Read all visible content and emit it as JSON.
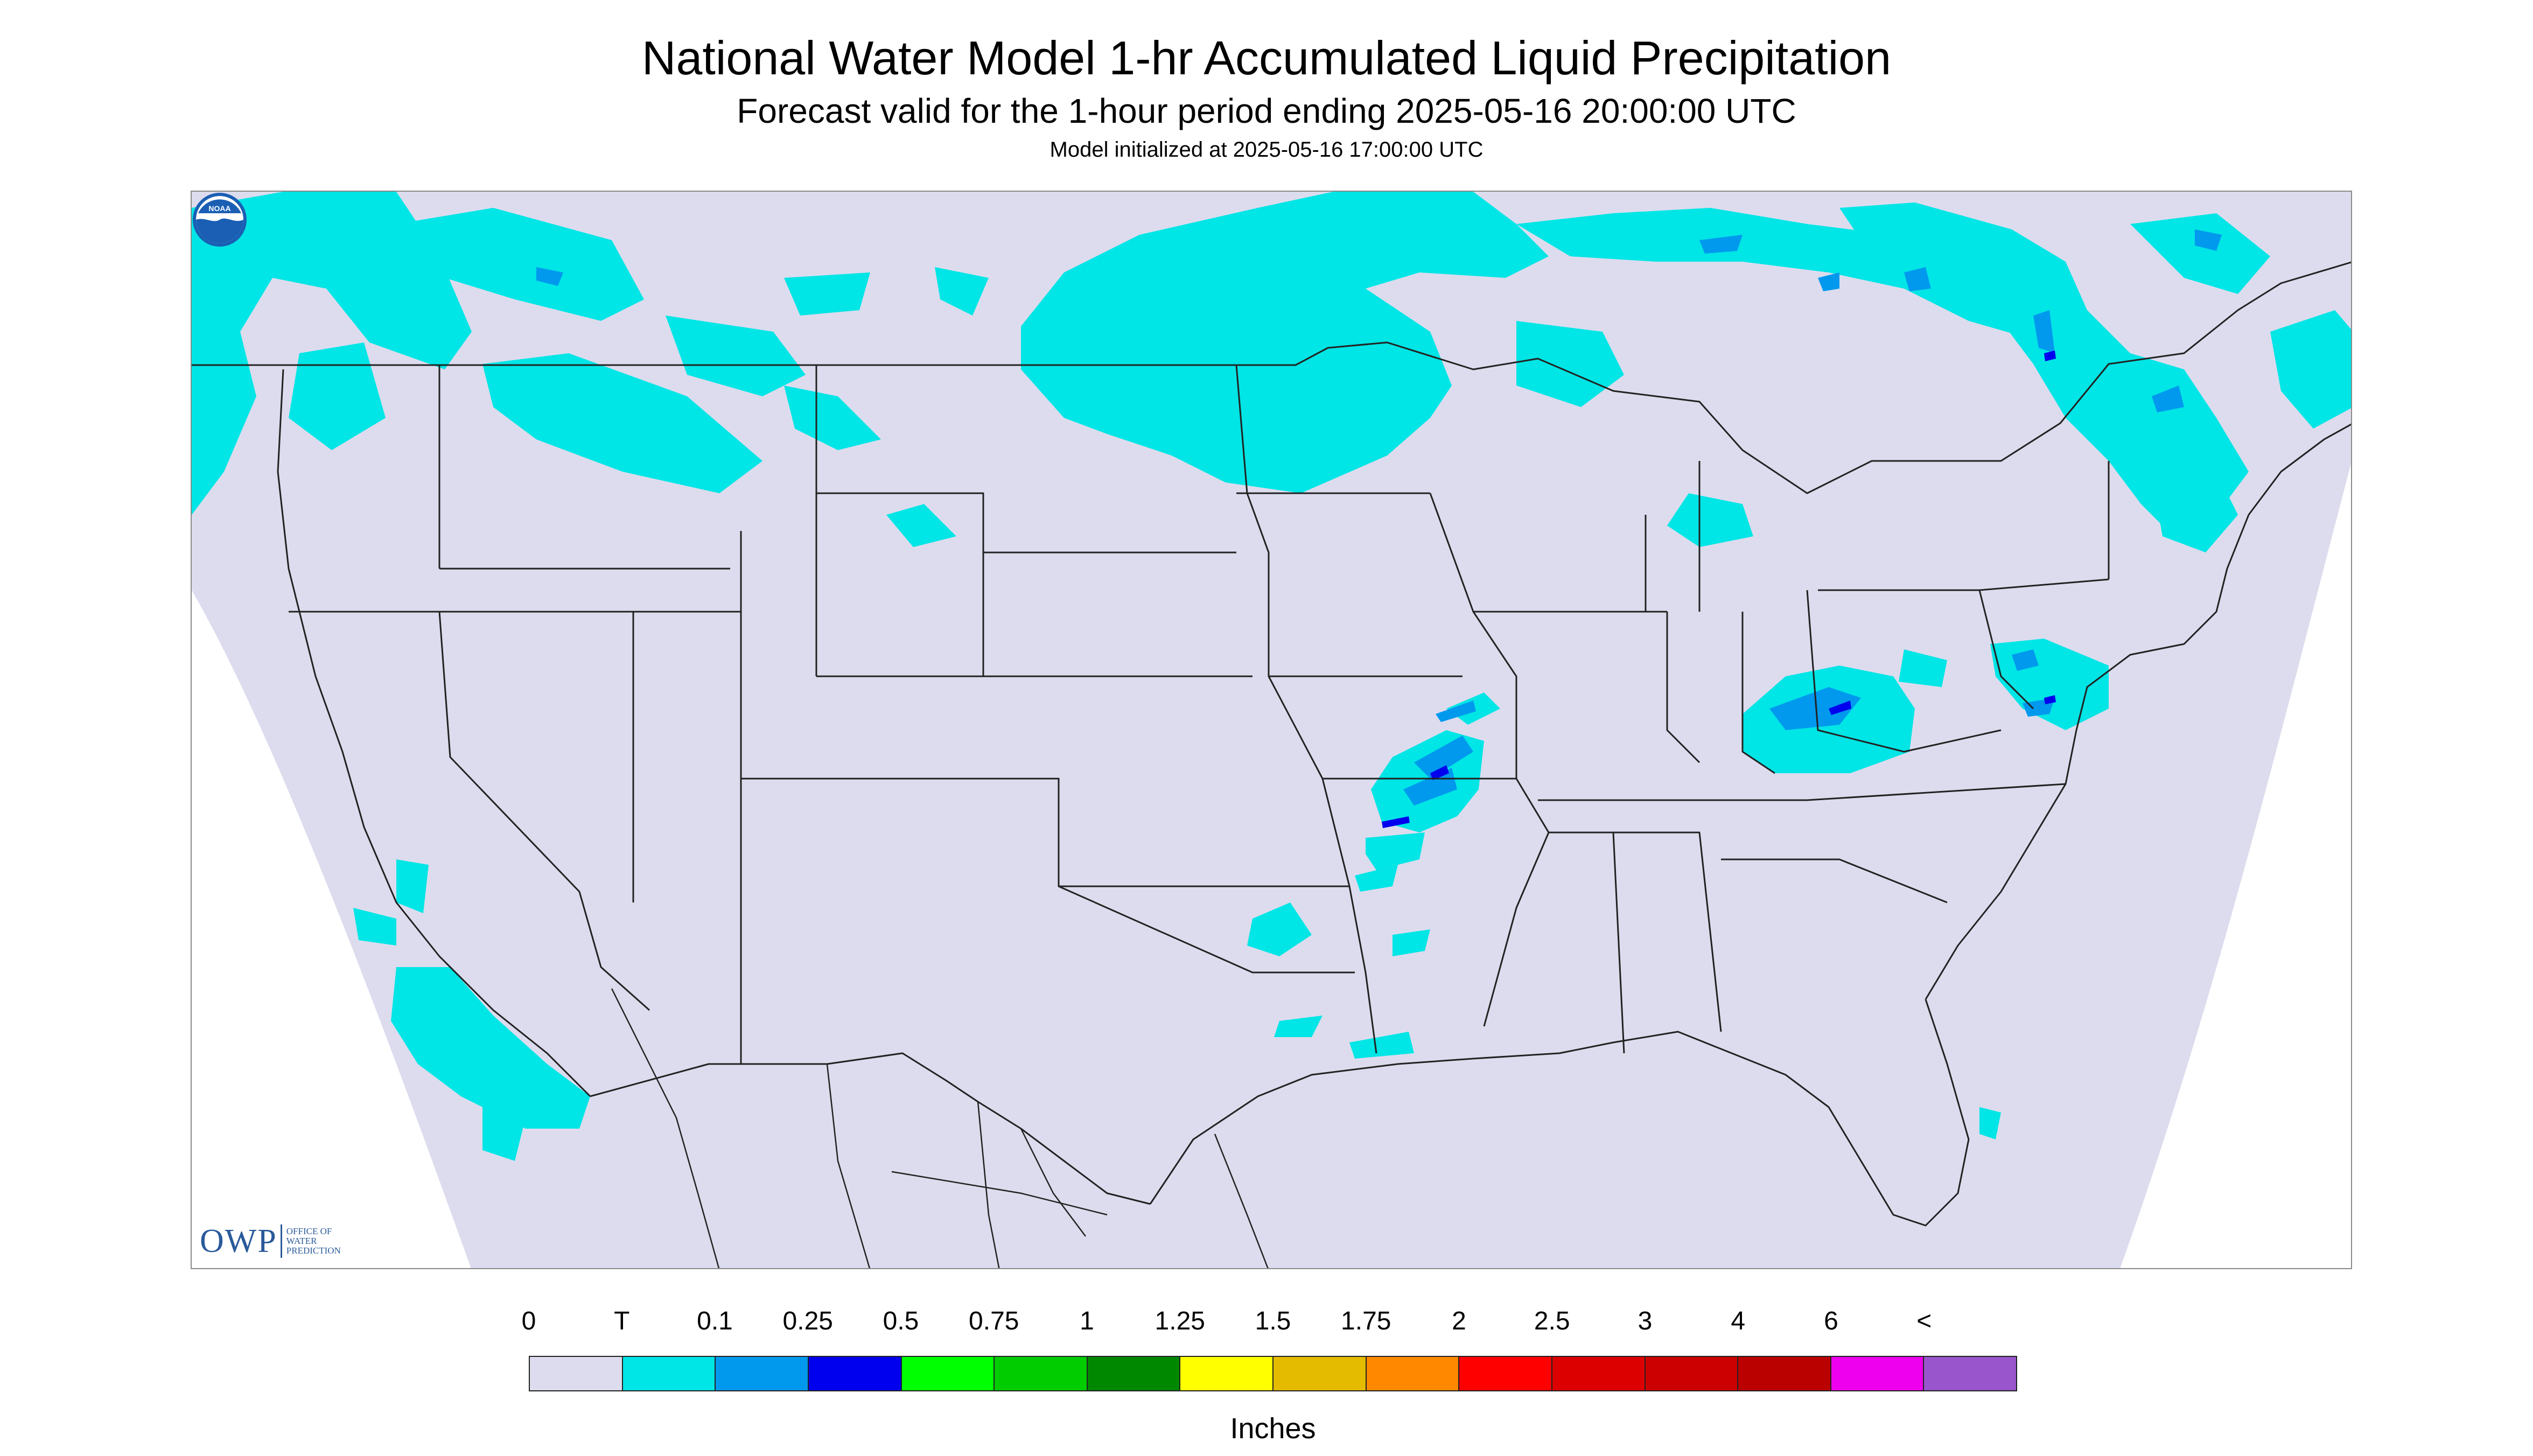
{
  "title": "National Water Model 1-hr Accumulated Liquid Precipitation",
  "subtitle": "Forecast valid for the 1-hour period ending 2025-05-16 20:00:00 UTC",
  "init_line": "Model initialized at 2025-05-16 17:00:00 UTC",
  "logos": {
    "owp_letters": "OWP",
    "owp_text": "OFFICE OF\nWATER\nPREDICTION",
    "noaa_text": "NOAA"
  },
  "legend": {
    "labels": [
      "0",
      "T",
      "0.1",
      "0.25",
      "0.5",
      "0.75",
      "1",
      "1.25",
      "1.5",
      "1.75",
      "2",
      "2.5",
      "3",
      "4",
      "6",
      "<"
    ],
    "colors": [
      "#dcdcee",
      "#00e5e5",
      "#0099ee",
      "#0000ee",
      "#00ff00",
      "#00cc00",
      "#008800",
      "#ffff00",
      "#e5bb00",
      "#ff8800",
      "#ff0000",
      "#dd0000",
      "#cc0000",
      "#bb0000",
      "#ee00ee",
      "#9955cc"
    ],
    "units": "Inches"
  },
  "colors": {
    "domain_fill": "#dcdcee",
    "outside_fill": "#ffffff",
    "trace": "#00e5e5",
    "light": "#0099ee",
    "moderate": "#0000ee",
    "boundary": "#222222"
  }
}
